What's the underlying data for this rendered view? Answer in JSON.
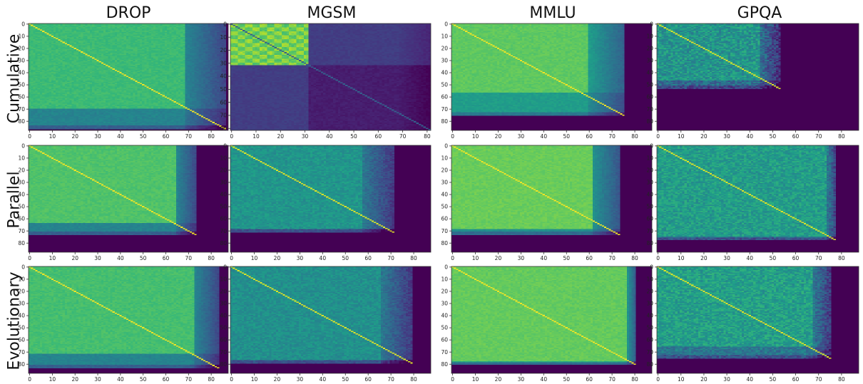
{
  "figure": {
    "columns": [
      "DROP",
      "MGSM",
      "MMLU",
      "GPQA"
    ],
    "rows": [
      "Cumulative",
      "Parallel",
      "Evolutionary"
    ]
  },
  "colors": {
    "colormap": "viridis",
    "background": "#440154"
  },
  "chart_data": [
    {
      "type": "heatmap",
      "row": "Cumulative",
      "column": "DROP",
      "n_valid": 87,
      "band_row": 70,
      "band_col": 69,
      "level_main": 0.68,
      "level_band": 0.45,
      "level_diag": 0.98,
      "noise": 0.03,
      "xlim": [
        0,
        88
      ],
      "ylim": [
        88,
        0
      ],
      "xticks": [
        0,
        10,
        20,
        30,
        40,
        50,
        60,
        70,
        80
      ],
      "yticks": [
        0,
        10,
        20,
        30,
        40,
        50,
        60,
        70,
        80
      ],
      "grid": false
    },
    {
      "type": "heatmap",
      "row": "Cumulative",
      "column": "MGSM",
      "n_valid": 82,
      "band_row": 32,
      "band_col": 32,
      "level_main": 0.2,
      "level_block": 0.85,
      "level_band": 0.2,
      "level_diag": 0.3,
      "noise": 0.04,
      "block_checker": true,
      "xlim": [
        0,
        82
      ],
      "ylim": [
        82,
        0
      ],
      "xticks": [
        0,
        10,
        20,
        30,
        40,
        50,
        60,
        70,
        80
      ],
      "yticks": [
        0,
        10,
        20,
        30,
        40,
        50,
        60,
        70,
        80
      ],
      "grid": false
    },
    {
      "type": "heatmap",
      "row": "Cumulative",
      "column": "MMLU",
      "n_valid": 76,
      "band_row": 57,
      "band_col": 60,
      "level_main": 0.75,
      "level_band": 0.55,
      "level_diag": 0.98,
      "noise": 0.03,
      "xlim": [
        0,
        88
      ],
      "ylim": [
        88,
        0
      ],
      "xticks": [
        0,
        10,
        20,
        30,
        40,
        50,
        60,
        70,
        80
      ],
      "yticks": [
        0,
        10,
        20,
        30,
        40,
        50,
        60,
        70,
        80
      ],
      "grid": false
    },
    {
      "type": "heatmap",
      "row": "Cumulative",
      "column": "GPQA",
      "n_valid": 54,
      "band_row": 47,
      "band_col": 45,
      "level_main": 0.52,
      "level_band": 0.36,
      "level_diag": 0.95,
      "noise": 0.12,
      "xlim": [
        0,
        88
      ],
      "ylim": [
        88,
        0
      ],
      "xticks": [
        0,
        10,
        20,
        30,
        40,
        50,
        60,
        70,
        80
      ],
      "yticks": [
        0,
        10,
        20,
        30,
        40,
        50,
        60,
        70,
        80
      ],
      "grid": false
    },
    {
      "type": "heatmap",
      "row": "Parallel",
      "column": "DROP",
      "n_valid": 74,
      "band_row": 64,
      "band_col": 65,
      "level_main": 0.72,
      "level_band": 0.45,
      "level_diag": 0.98,
      "noise": 0.03,
      "xlim": [
        0,
        88
      ],
      "ylim": [
        88,
        0
      ],
      "xticks": [
        0,
        10,
        20,
        30,
        40,
        50,
        60,
        70,
        80
      ],
      "yticks": [
        0,
        10,
        20,
        30,
        40,
        50,
        60,
        70,
        80
      ],
      "grid": false
    },
    {
      "type": "heatmap",
      "row": "Parallel",
      "column": "MGSM",
      "n_valid": 72,
      "band_row": 69,
      "band_col": 58,
      "level_main": 0.52,
      "level_band": 0.4,
      "level_diag": 0.95,
      "noise": 0.06,
      "xlim": [
        0,
        88
      ],
      "ylim": [
        88,
        0
      ],
      "xticks": [
        0,
        10,
        20,
        30,
        40,
        50,
        60,
        70,
        80
      ],
      "yticks": [
        0,
        10,
        20,
        30,
        40,
        50,
        60,
        70,
        80
      ],
      "grid": false
    },
    {
      "type": "heatmap",
      "row": "Parallel",
      "column": "MMLU",
      "n_valid": 74,
      "band_row": 69,
      "band_col": 62,
      "level_main": 0.77,
      "level_band": 0.5,
      "level_diag": 0.98,
      "noise": 0.03,
      "xlim": [
        0,
        88
      ],
      "ylim": [
        88,
        0
      ],
      "xticks": [
        0,
        10,
        20,
        30,
        40,
        50,
        60,
        70,
        80
      ],
      "yticks": [
        0,
        10,
        20,
        30,
        40,
        50,
        60,
        70,
        80
      ],
      "grid": false
    },
    {
      "type": "heatmap",
      "row": "Parallel",
      "column": "GPQA",
      "n_valid": 78,
      "band_row": 76,
      "band_col": 74,
      "level_main": 0.55,
      "level_band": 0.4,
      "level_diag": 0.95,
      "noise": 0.09,
      "xlim": [
        0,
        88
      ],
      "ylim": [
        88,
        0
      ],
      "xticks": [
        0,
        10,
        20,
        30,
        40,
        50,
        60,
        70,
        80
      ],
      "yticks": [
        0,
        10,
        20,
        30,
        40,
        50,
        60,
        70,
        80
      ],
      "grid": false
    },
    {
      "type": "heatmap",
      "row": "Evolutionary",
      "column": "DROP",
      "n_valid": 84,
      "band_row": 72,
      "band_col": 73,
      "level_main": 0.7,
      "level_band": 0.45,
      "level_diag": 0.98,
      "noise": 0.03,
      "xlim": [
        0,
        88
      ],
      "ylim": [
        88,
        0
      ],
      "xticks": [
        0,
        10,
        20,
        30,
        40,
        50,
        60,
        70,
        80
      ],
      "yticks": [
        0,
        10,
        20,
        30,
        40,
        50,
        60,
        70,
        80
      ],
      "grid": false
    },
    {
      "type": "heatmap",
      "row": "Evolutionary",
      "column": "MGSM",
      "n_valid": 80,
      "band_row": 77,
      "band_col": 66,
      "level_main": 0.5,
      "level_band": 0.4,
      "level_diag": 0.95,
      "noise": 0.06,
      "xlim": [
        0,
        88
      ],
      "ylim": [
        88,
        0
      ],
      "xticks": [
        0,
        10,
        20,
        30,
        40,
        50,
        60,
        70,
        80
      ],
      "yticks": [
        0,
        10,
        20,
        30,
        40,
        50,
        60,
        70,
        80
      ],
      "grid": false
    },
    {
      "type": "heatmap",
      "row": "Evolutionary",
      "column": "MMLU",
      "n_valid": 81,
      "band_row": 79,
      "band_col": 77,
      "level_main": 0.76,
      "level_band": 0.5,
      "level_diag": 0.98,
      "noise": 0.03,
      "xlim": [
        0,
        88
      ],
      "ylim": [
        88,
        0
      ],
      "xticks": [
        0,
        10,
        20,
        30,
        40,
        50,
        60,
        70,
        80
      ],
      "yticks": [
        0,
        10,
        20,
        30,
        40,
        50,
        60,
        70,
        80
      ],
      "grid": false
    },
    {
      "type": "heatmap",
      "row": "Evolutionary",
      "column": "GPQA",
      "n_valid": 76,
      "band_row": 66,
      "band_col": 68,
      "level_main": 0.56,
      "level_band": 0.4,
      "level_diag": 0.95,
      "noise": 0.1,
      "xlim": [
        0,
        88
      ],
      "ylim": [
        88,
        0
      ],
      "xticks": [
        0,
        10,
        20,
        30,
        40,
        50,
        60,
        70,
        80
      ],
      "yticks": [
        0,
        10,
        20,
        30,
        40,
        50,
        60,
        70,
        80
      ],
      "grid": false
    }
  ]
}
